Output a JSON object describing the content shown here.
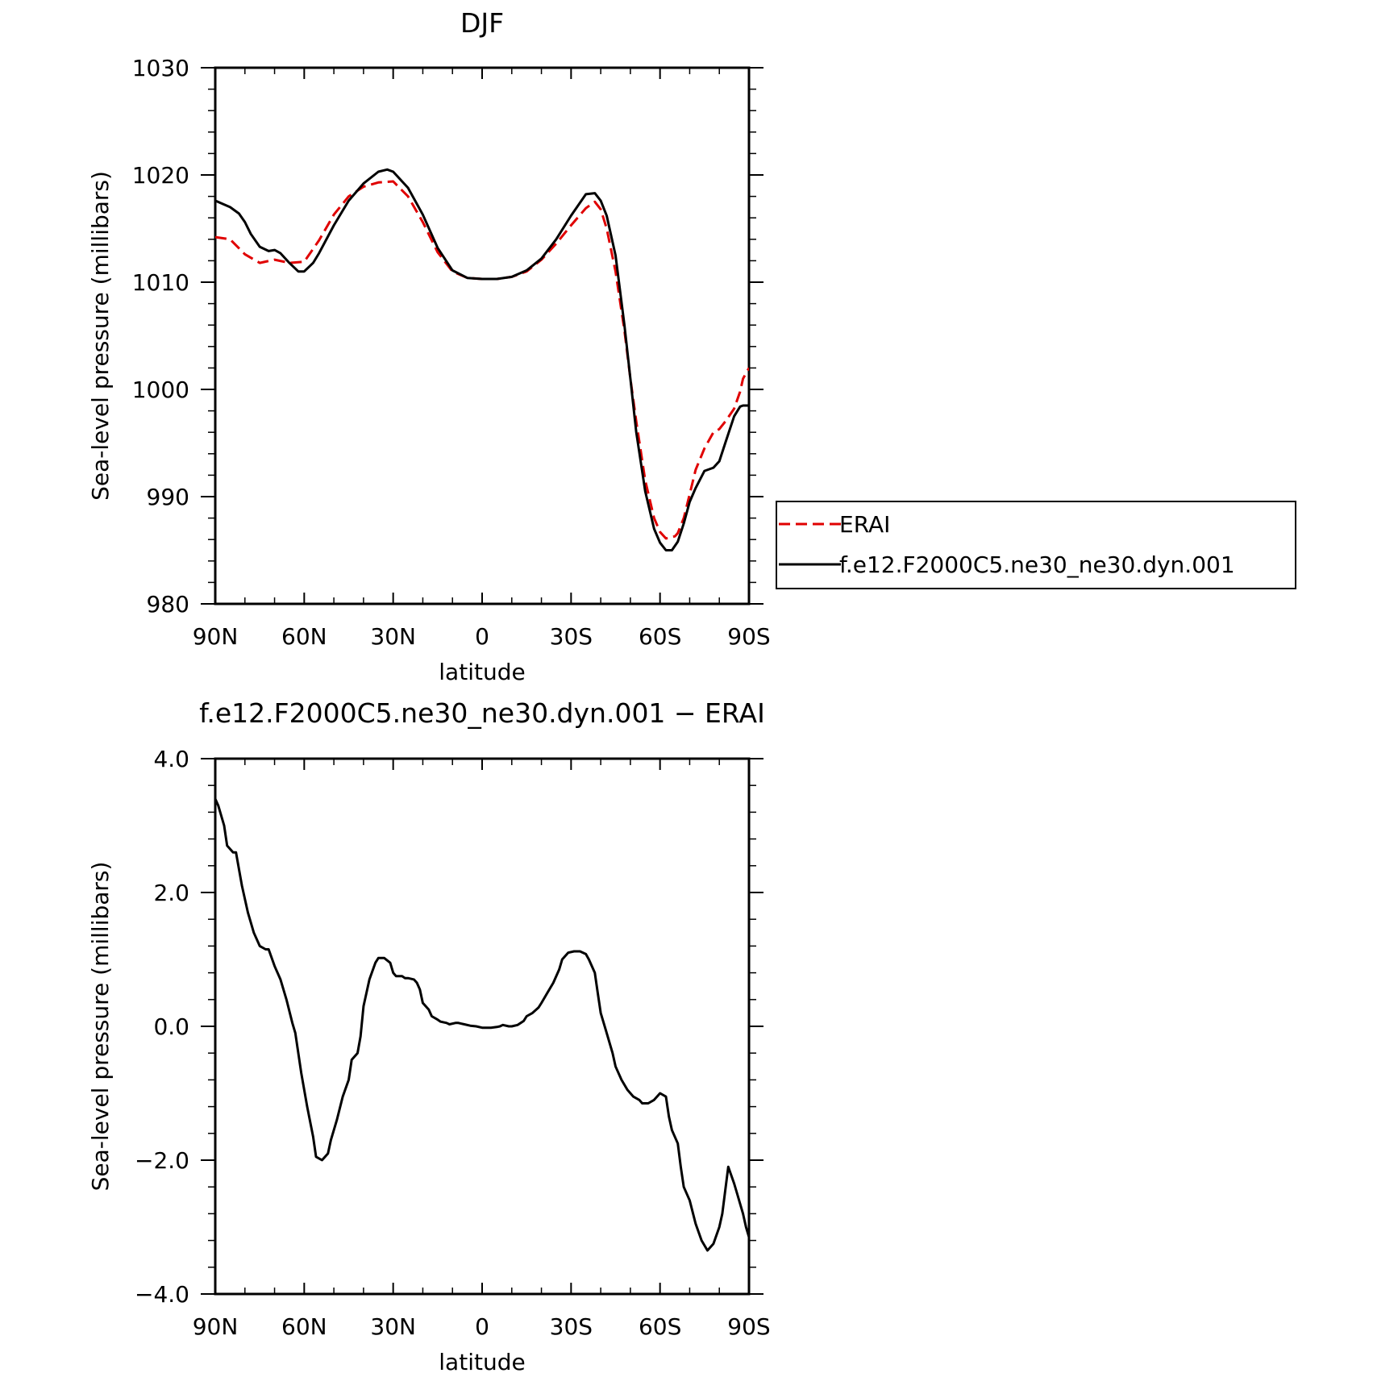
{
  "chart_data": [
    {
      "type": "line",
      "title": "DJF",
      "xlabel": "latitude",
      "ylabel": "Sea-level pressure (millibars)",
      "xlim": [
        90,
        -90
      ],
      "ylim": [
        980,
        1030
      ],
      "x_ticks": [
        {
          "value": 90,
          "label": "90N"
        },
        {
          "value": 60,
          "label": "60N"
        },
        {
          "value": 30,
          "label": "30N"
        },
        {
          "value": 0,
          "label": "0"
        },
        {
          "value": -30,
          "label": "30S"
        },
        {
          "value": -60,
          "label": "60S"
        },
        {
          "value": -90,
          "label": "90S"
        }
      ],
      "y_ticks": [
        {
          "value": 980,
          "label": "980"
        },
        {
          "value": 990,
          "label": "990"
        },
        {
          "value": 1000,
          "label": "1000"
        },
        {
          "value": 1010,
          "label": "1010"
        },
        {
          "value": 1020,
          "label": "1020"
        },
        {
          "value": 1030,
          "label": "1030"
        }
      ],
      "legend_position": "right",
      "series": [
        {
          "name": "ERAI",
          "color": "#e00000",
          "dash": "dashed",
          "x": [
            90,
            85,
            80,
            75,
            70,
            65,
            60,
            55,
            50,
            45,
            40,
            35,
            30,
            25,
            20,
            15,
            10,
            5,
            0,
            -5,
            -10,
            -15,
            -20,
            -25,
            -30,
            -35,
            -38,
            -40,
            -42,
            -45,
            -48,
            -50,
            -52,
            -55,
            -58,
            -60,
            -62,
            -65,
            -66,
            -68,
            -70,
            -72,
            -75,
            -78,
            -80,
            -82,
            -85,
            -87,
            -88,
            -90
          ],
          "y": [
            1014.2,
            1014.0,
            1012.6,
            1011.8,
            1012.1,
            1011.8,
            1011.9,
            1013.9,
            1016.3,
            1018.0,
            1018.9,
            1019.3,
            1019.4,
            1018.0,
            1015.6,
            1012.8,
            1011.0,
            1010.4,
            1010.3,
            1010.3,
            1010.5,
            1011.0,
            1012.1,
            1013.6,
            1015.3,
            1016.9,
            1017.5,
            1016.8,
            1015.0,
            1011.0,
            1005.5,
            1001.0,
            997.0,
            991.5,
            988.0,
            986.7,
            986.1,
            986.3,
            986.6,
            988.0,
            990.2,
            992.5,
            994.5,
            996.0,
            996.3,
            997.0,
            998.2,
            999.8,
            1001.0,
            1002.0
          ]
        },
        {
          "name": "f.e12.F2000C5.ne30_ne30.dyn.001",
          "color": "#000000",
          "dash": "solid",
          "x": [
            90,
            85,
            82,
            80,
            78,
            75,
            72,
            70,
            68,
            65,
            62,
            60,
            57,
            55,
            50,
            45,
            40,
            35,
            32,
            30,
            25,
            20,
            15,
            10,
            5,
            0,
            -5,
            -10,
            -15,
            -20,
            -25,
            -30,
            -35,
            -38,
            -40,
            -42,
            -45,
            -48,
            -50,
            -52,
            -55,
            -58,
            -60,
            -62,
            -64,
            -66,
            -68,
            -70,
            -72,
            -75,
            -78,
            -80,
            -82,
            -85,
            -87,
            -88,
            -90
          ],
          "y": [
            1017.6,
            1017.0,
            1016.4,
            1015.6,
            1014.5,
            1013.3,
            1012.9,
            1013.0,
            1012.7,
            1011.8,
            1011.0,
            1011.0,
            1011.8,
            1012.7,
            1015.3,
            1017.6,
            1019.2,
            1020.3,
            1020.5,
            1020.3,
            1018.8,
            1016.3,
            1013.2,
            1011.1,
            1010.4,
            1010.3,
            1010.3,
            1010.5,
            1011.1,
            1012.2,
            1014.0,
            1016.2,
            1018.2,
            1018.3,
            1017.6,
            1016.2,
            1012.5,
            1006.0,
            1001.0,
            996.0,
            990.5,
            987.0,
            985.7,
            985.0,
            985.0,
            985.8,
            987.5,
            989.5,
            990.8,
            992.4,
            992.7,
            993.3,
            995.0,
            997.5,
            998.4,
            998.5,
            998.5
          ]
        }
      ]
    },
    {
      "type": "line",
      "title": "f.e12.F2000C5.ne30_ne30.dyn.001 − ERAI",
      "xlabel": "latitude",
      "ylabel": "Sea-level pressure (millibars)",
      "xlim": [
        90,
        -90
      ],
      "ylim": [
        -4.0,
        4.0
      ],
      "x_ticks": [
        {
          "value": 90,
          "label": "90N"
        },
        {
          "value": 60,
          "label": "60N"
        },
        {
          "value": 30,
          "label": "30N"
        },
        {
          "value": 0,
          "label": "0"
        },
        {
          "value": -30,
          "label": "30S"
        },
        {
          "value": -60,
          "label": "60S"
        },
        {
          "value": -90,
          "label": "90S"
        }
      ],
      "y_ticks": [
        {
          "value": -4.0,
          "label": "−4.0"
        },
        {
          "value": -2.0,
          "label": "−2.0"
        },
        {
          "value": 0.0,
          "label": "0.0"
        },
        {
          "value": 2.0,
          "label": "2.0"
        },
        {
          "value": 4.0,
          "label": "4.0"
        }
      ],
      "series": [
        {
          "color": "#000000",
          "dash": "solid",
          "x": [
            90,
            89,
            87,
            86,
            84,
            83,
            82,
            81,
            79,
            77,
            75,
            73,
            72,
            70,
            68,
            66,
            64,
            63,
            61,
            59,
            57,
            56,
            54,
            52,
            51,
            49,
            47,
            45,
            44,
            42,
            41,
            40,
            38,
            36,
            35,
            33,
            31,
            30,
            29,
            27,
            26,
            25,
            23,
            22,
            21,
            20,
            18,
            17,
            15,
            14,
            12,
            11,
            9,
            8,
            7,
            6,
            4,
            2,
            0,
            -1,
            -3,
            -5,
            -6,
            -7,
            -9,
            -10,
            -12,
            -14,
            -15,
            -17,
            -19,
            -20,
            -22,
            -24,
            -26,
            -27,
            -29,
            -31,
            -33,
            -35,
            -36,
            -38,
            -39,
            -40,
            -42,
            -44,
            -45,
            -47,
            -49,
            -51,
            -53,
            -54,
            -56,
            -58,
            -60,
            -62,
            -63,
            -64,
            -66,
            -67,
            -68,
            -70,
            -72,
            -74,
            -76,
            -78,
            -80,
            -81,
            -82,
            -83,
            -85,
            -86,
            -88,
            -89,
            -90
          ],
          "y": [
            3.4,
            3.3,
            3.0,
            2.7,
            2.6,
            2.6,
            2.35,
            2.1,
            1.7,
            1.4,
            1.2,
            1.15,
            1.15,
            0.9,
            0.7,
            0.4,
            0.05,
            -0.1,
            -0.7,
            -1.2,
            -1.65,
            -1.95,
            -2.0,
            -1.9,
            -1.7,
            -1.4,
            -1.05,
            -0.8,
            -0.5,
            -0.4,
            -0.15,
            0.3,
            0.7,
            0.95,
            1.02,
            1.02,
            0.95,
            0.8,
            0.75,
            0.75,
            0.72,
            0.72,
            0.7,
            0.65,
            0.55,
            0.35,
            0.25,
            0.15,
            0.1,
            0.07,
            0.05,
            0.03,
            0.05,
            0.05,
            0.04,
            0.03,
            0.01,
            0.0,
            -0.02,
            -0.02,
            -0.02,
            -0.01,
            0.0,
            0.02,
            0.0,
            0.0,
            0.02,
            0.08,
            0.15,
            0.2,
            0.28,
            0.35,
            0.5,
            0.65,
            0.85,
            1.0,
            1.1,
            1.12,
            1.12,
            1.08,
            1.0,
            0.8,
            0.5,
            0.2,
            -0.1,
            -0.4,
            -0.6,
            -0.8,
            -0.95,
            -1.05,
            -1.1,
            -1.15,
            -1.15,
            -1.1,
            -1.0,
            -1.05,
            -1.35,
            -1.55,
            -1.75,
            -2.1,
            -2.4,
            -2.6,
            -2.95,
            -3.2,
            -3.35,
            -3.25,
            -3.0,
            -2.8,
            -2.45,
            -2.1,
            -2.35,
            -2.5,
            -2.8,
            -3.0,
            -3.15
          ]
        }
      ]
    }
  ]
}
